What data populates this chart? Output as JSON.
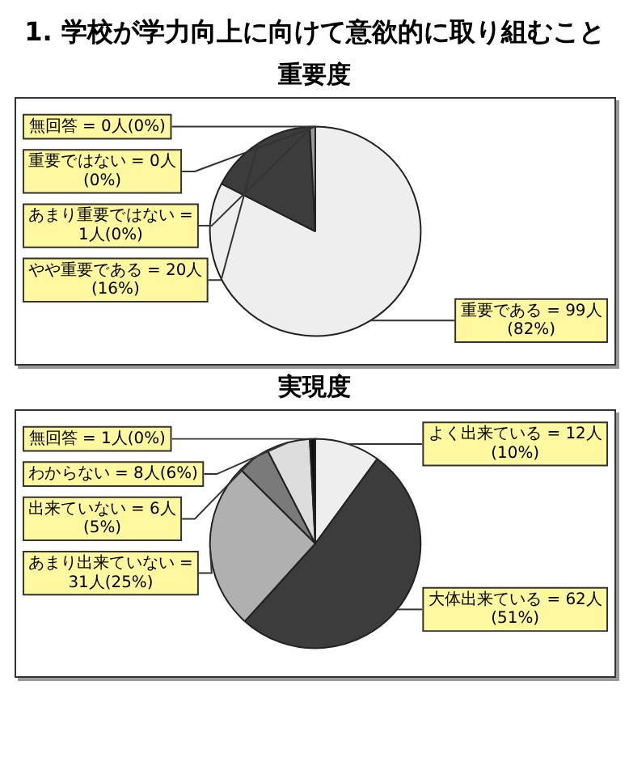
{
  "chart_data": [
    {
      "type": "pie",
      "title": "1. 学校が学力向上に向けて意欲的に取り組むこと",
      "subtitle": "重要度",
      "categories": [
        "重要である = 99人(82%)",
        "やや重要である = 20人(16%)",
        "あまり重要ではない = 1人(0%)",
        "無回答 = 0人(0%)",
        "重要ではない = 0人(0%)"
      ],
      "values": [
        99,
        20,
        1,
        0,
        0
      ],
      "colors": [
        "#eeeeee",
        "#3c3c3c",
        "#999999",
        "#666666",
        "#cccccc"
      ]
    },
    {
      "type": "pie",
      "title": "実現度",
      "categories": [
        "よく出来ている = 12人(10%)",
        "大体出来ている = 62人(51%)",
        "あまり出来ていない = 31人(25%)",
        "出来ていない = 6人(5%)",
        "わからない = 8人(6%)",
        "無回答 = 1人(0%)"
      ],
      "values": [
        12,
        62,
        31,
        6,
        8,
        1
      ],
      "colors": [
        "#eeeeee",
        "#3c3c3c",
        "#b0b0b0",
        "#7a7a7a",
        "#dddddd",
        "#111111"
      ]
    }
  ]
}
